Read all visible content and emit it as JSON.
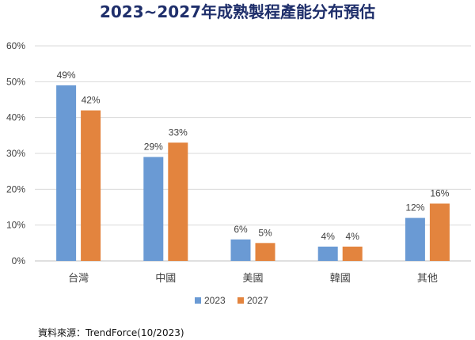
{
  "chart_data": {
    "type": "bar",
    "title": "2023~2027年成熟製程產能分布預估",
    "categories": [
      "台灣",
      "中國",
      "美國",
      "韓國",
      "其他"
    ],
    "series": [
      {
        "name": "2023",
        "values": [
          49,
          29,
          6,
          4,
          12
        ],
        "color": "#6a9ad4"
      },
      {
        "name": "2027",
        "values": [
          42,
          33,
          5,
          4,
          16
        ],
        "color": "#e3843e"
      }
    ],
    "ylim": [
      0,
      60
    ],
    "yticks": [
      0,
      10,
      20,
      30,
      40,
      50,
      60
    ],
    "tick_suffix": "%",
    "value_suffix": "%",
    "grid": true,
    "legend_position": "bottom"
  },
  "source_note": "資料來源：TrendForce(10/2023)"
}
